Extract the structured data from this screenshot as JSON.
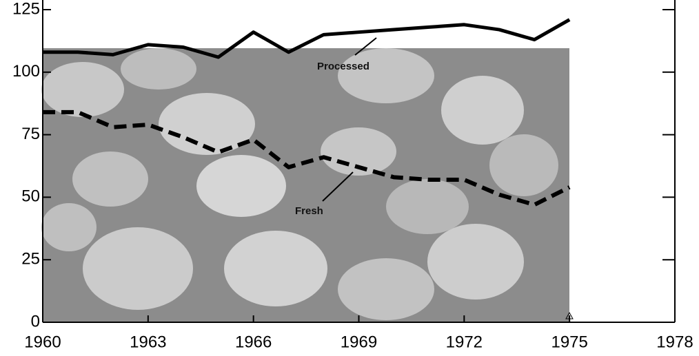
{
  "chart_data": {
    "type": "line",
    "x": [
      1960,
      1961,
      1962,
      1963,
      1964,
      1965,
      1966,
      1967,
      1968,
      1969,
      1970,
      1971,
      1972,
      1973,
      1974,
      1975
    ],
    "series": [
      {
        "name": "Processed",
        "color": "#000000",
        "dashed": false,
        "values": [
          108,
          108,
          107,
          111,
          110,
          106,
          116,
          108,
          115,
          116,
          117,
          118,
          119,
          117,
          113,
          121
        ]
      },
      {
        "name": "Fresh",
        "color": "#000000",
        "dashed": true,
        "values": [
          84,
          84,
          78,
          79,
          74,
          68,
          73,
          62,
          66,
          62,
          58,
          57,
          57,
          51,
          47,
          54
        ]
      }
    ],
    "xlim": [
      1960,
      1978
    ],
    "xticks": [
      1960,
      1963,
      1966,
      1969,
      1972,
      1975,
      1978
    ],
    "ylim": [
      0,
      125
    ],
    "yticks": [
      0,
      25,
      50,
      75,
      100,
      125
    ],
    "grid": false
  }
}
